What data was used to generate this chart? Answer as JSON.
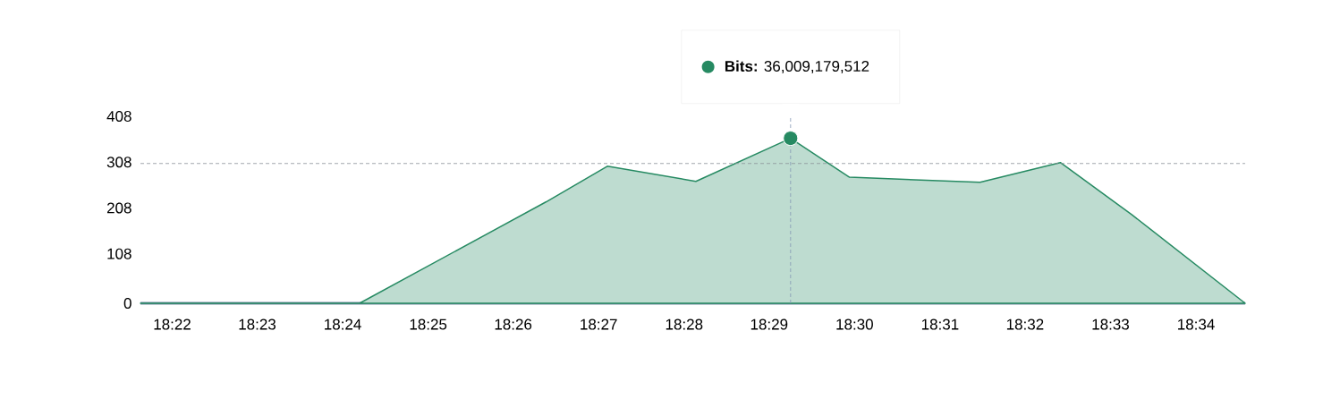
{
  "chart_data": {
    "type": "area",
    "x": [
      18.3605,
      18.4033,
      18.4397,
      18.4517,
      18.469,
      18.4875,
      18.499,
      18.5245,
      18.5402,
      18.5542,
      18.5763
    ],
    "series": [
      {
        "color": "#268a62",
        "values": [
          0,
          0,
          221,
          299,
          266,
          360,
          275,
          264,
          307,
          193,
          0
        ]
      },
      {
        "type": "scatter",
        "marker": "circle",
        "color": "#268a62",
        "x": [
          18.4875
        ],
        "values": [
          360
        ]
      }
    ],
    "xlim": [
      18.3605,
      18.5763
    ],
    "ylim": [
      0,
      408
    ],
    "yticks": [
      0,
      108,
      208,
      308,
      408
    ],
    "xticks": [
      {
        "value": 18.3667,
        "label": "18:22"
      },
      {
        "value": 18.3833,
        "label": "18:23"
      },
      {
        "value": 18.4,
        "label": "18:24"
      },
      {
        "value": 18.4167,
        "label": "18:25"
      },
      {
        "value": 18.4333,
        "label": "18:26"
      },
      {
        "value": 18.45,
        "label": "18:27"
      },
      {
        "value": 18.4667,
        "label": "18:28"
      },
      {
        "value": 18.4833,
        "label": "18:29"
      },
      {
        "value": 18.5,
        "label": "18:30"
      },
      {
        "value": 18.5167,
        "label": "18:31"
      },
      {
        "value": 18.5333,
        "label": "18:32"
      },
      {
        "value": 18.55,
        "label": "18:33"
      },
      {
        "value": 18.5667,
        "label": "18:34"
      }
    ],
    "ref_lines": [
      {
        "axis": "y",
        "value": 305,
        "color": "#8a9199",
        "line_style": "dashed"
      },
      {
        "axis": "x",
        "value": 18.4875,
        "color": "#8497b4",
        "line_style": "dashed"
      }
    ],
    "annotations": [
      "**Bits:** 36,009,179,512"
    ],
    "grid": false,
    "marker": "none",
    "line_style": "solid"
  }
}
